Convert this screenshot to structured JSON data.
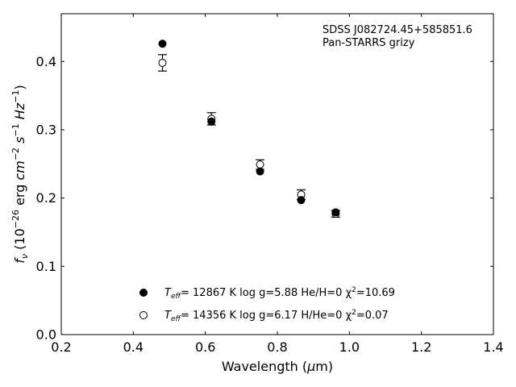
{
  "chart_data": {
    "type": "scatter",
    "title": "",
    "xlabel": "Wavelength (μm)",
    "ylabel": "f_ν (10^-26 erg cm^-2 s^-1 Hz^-1)",
    "xlim": [
      0.2,
      1.4
    ],
    "ylim": [
      0.0,
      0.47
    ],
    "xticks": [
      "0.2",
      "0.4",
      "0.6",
      "0.8",
      "1.0",
      "1.2",
      "1.4"
    ],
    "yticks": [
      "0.0",
      "0.1",
      "0.2",
      "0.3",
      "0.4"
    ],
    "grid": false,
    "legend_position": "lower-center",
    "annotation": {
      "line1": "SDSS J082724.45+585851.6",
      "line2": "Pan-STARRS grizy"
    },
    "bands": [
      "g",
      "r",
      "i",
      "z",
      "y"
    ],
    "series": [
      {
        "name": "T_eff= 12867 K  log g=5.88  He/H=0  χ²=10.69",
        "marker": "filled-circle",
        "color": "#000000",
        "x": [
          0.481,
          0.617,
          0.752,
          0.866,
          0.962
        ],
        "y": [
          0.426,
          0.312,
          0.239,
          0.197,
          0.179
        ]
      },
      {
        "name": "T_eff= 14356 K  log g=6.17  H/He=0  χ²=0.07",
        "marker": "open-circle-errorbar",
        "color": "#000000",
        "x": [
          0.481,
          0.617,
          0.752,
          0.866,
          0.962
        ],
        "y": [
          0.398,
          0.316,
          0.249,
          0.205,
          0.177
        ],
        "yerr": [
          0.012,
          0.009,
          0.007,
          0.007,
          0.005
        ]
      }
    ],
    "legend": [
      {
        "teff_label": "T",
        "teff_sub": "eff",
        "entry1_rest": "= 12867 K  log g=5.88  He/H=0  χ",
        "chi_sup": "2",
        "entry1_chi": "=10.69"
      },
      {
        "teff_label": "T",
        "teff_sub": "eff",
        "entry2_rest": "= 14356 K  log g=6.17  H/He=0  χ",
        "chi_sup": "2",
        "entry2_chi": "=0.07"
      }
    ]
  }
}
